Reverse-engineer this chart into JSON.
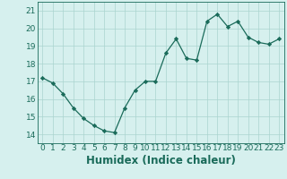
{
  "x": [
    0,
    1,
    2,
    3,
    4,
    5,
    6,
    7,
    8,
    9,
    10,
    11,
    12,
    13,
    14,
    15,
    16,
    17,
    18,
    19,
    20,
    21,
    22,
    23
  ],
  "y": [
    17.2,
    16.9,
    16.3,
    15.5,
    14.9,
    14.5,
    14.2,
    14.1,
    15.5,
    16.5,
    17.0,
    17.0,
    18.6,
    19.4,
    18.3,
    18.2,
    20.4,
    20.8,
    20.1,
    20.4,
    19.5,
    19.2,
    19.1,
    19.4
  ],
  "xlabel": "Humidex (Indice chaleur)",
  "xlim": [
    -0.5,
    23.5
  ],
  "ylim": [
    13.5,
    21.5
  ],
  "yticks": [
    14,
    15,
    16,
    17,
    18,
    19,
    20,
    21
  ],
  "xticks": [
    0,
    1,
    2,
    3,
    4,
    5,
    6,
    7,
    8,
    9,
    10,
    11,
    12,
    13,
    14,
    15,
    16,
    17,
    18,
    19,
    20,
    21,
    22,
    23
  ],
  "line_color": "#1a6b5a",
  "marker": "D",
  "marker_size": 2.2,
  "bg_color": "#d6f0ee",
  "grid_color": "#aad4cf",
  "tick_label_fontsize": 6.5,
  "xlabel_fontsize": 8.5
}
